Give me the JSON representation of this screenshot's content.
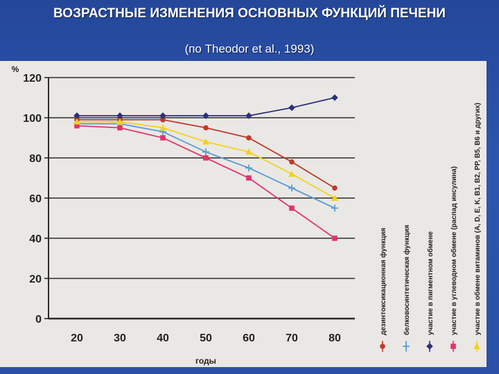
{
  "title": "ВОЗРАСТНЫЕ ИЗМЕНЕНИЯ ОСНОВНЫХ ФУНКЦИЙ ПЕЧЕНИ",
  "subtitle": "(по Theodor et al., 1993)",
  "chart_data": {
    "type": "line",
    "title": "",
    "xlabel": "годы",
    "ylabel": "%",
    "x": [
      20,
      30,
      40,
      50,
      60,
      70,
      80
    ],
    "ylim": [
      0,
      120
    ],
    "yticks": [
      0,
      20,
      40,
      60,
      80,
      100,
      120
    ],
    "grid": true,
    "legend_position": "right-vertical",
    "series": [
      {
        "name": "дезинтоксикационная функция",
        "color": "#c0392b",
        "marker": "circle",
        "values": [
          99,
          99,
          99,
          95,
          90,
          78,
          65
        ]
      },
      {
        "name": "белковосинтетическая функция",
        "color": "#5b9bd5",
        "marker": "plus",
        "values": [
          97,
          97,
          93,
          83,
          75,
          65,
          55
        ]
      },
      {
        "name": "участие в пигментном обмене",
        "color": "#2c2f7a",
        "marker": "diamond",
        "values": [
          101,
          101,
          101,
          101,
          101,
          105,
          110
        ]
      },
      {
        "name": "участие в углеводном обмене (распад инсулина)",
        "color": "#e0356b",
        "marker": "square",
        "values": [
          96,
          95,
          90,
          80,
          70,
          55,
          40
        ]
      },
      {
        "name": "участие в обмене витаминов (A, D, E, K, B1, B2, PP, B5, B6 и других)",
        "color": "#f2d21b",
        "marker": "triangle",
        "values": [
          98,
          98,
          95,
          88,
          83,
          72,
          60
        ]
      }
    ]
  }
}
